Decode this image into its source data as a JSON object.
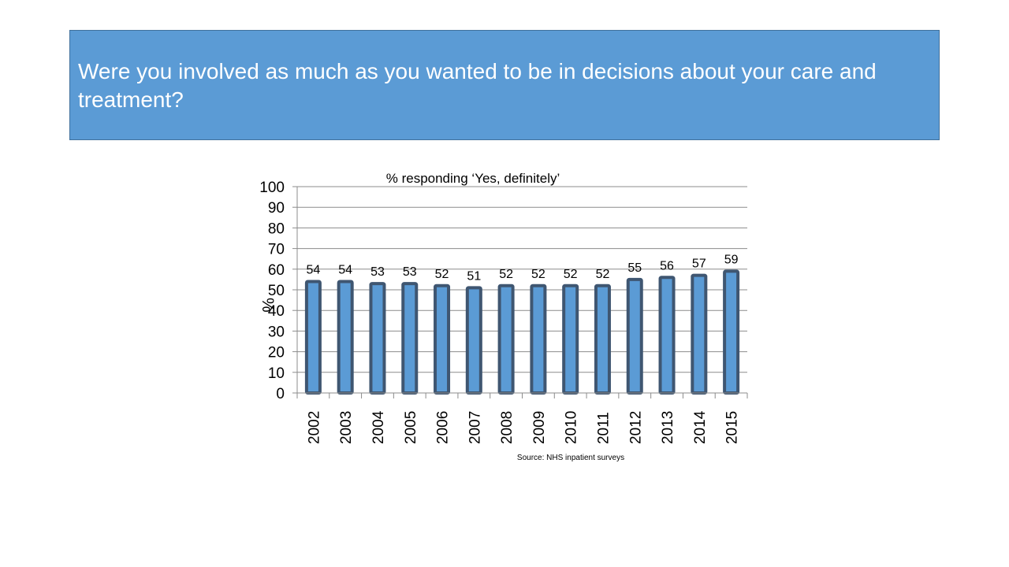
{
  "slide": {
    "title": "Were you involved as much as you wanted to be in decisions about your care and treatment?"
  },
  "colors": {
    "title_background": "#5b9bd5",
    "bar_fill": "#5b9bd5",
    "bar_outline": "#3f5671"
  },
  "chart_data": {
    "type": "bar",
    "title": "% responding ‘Yes, definitely’",
    "xlabel": "",
    "ylabel": "%",
    "ylim": [
      0,
      100
    ],
    "yticks": [
      0,
      10,
      20,
      30,
      40,
      50,
      60,
      70,
      80,
      90,
      100
    ],
    "grid": true,
    "categories": [
      "2002",
      "2003",
      "2004",
      "2005",
      "2006",
      "2007",
      "2008",
      "2009",
      "2010",
      "2011",
      "2012",
      "2013",
      "2014",
      "2015"
    ],
    "values": [
      54,
      54,
      53,
      53,
      52,
      51,
      52,
      52,
      52,
      52,
      55,
      56,
      57,
      59
    ],
    "source": "Source: NHS inpatient surveys"
  }
}
